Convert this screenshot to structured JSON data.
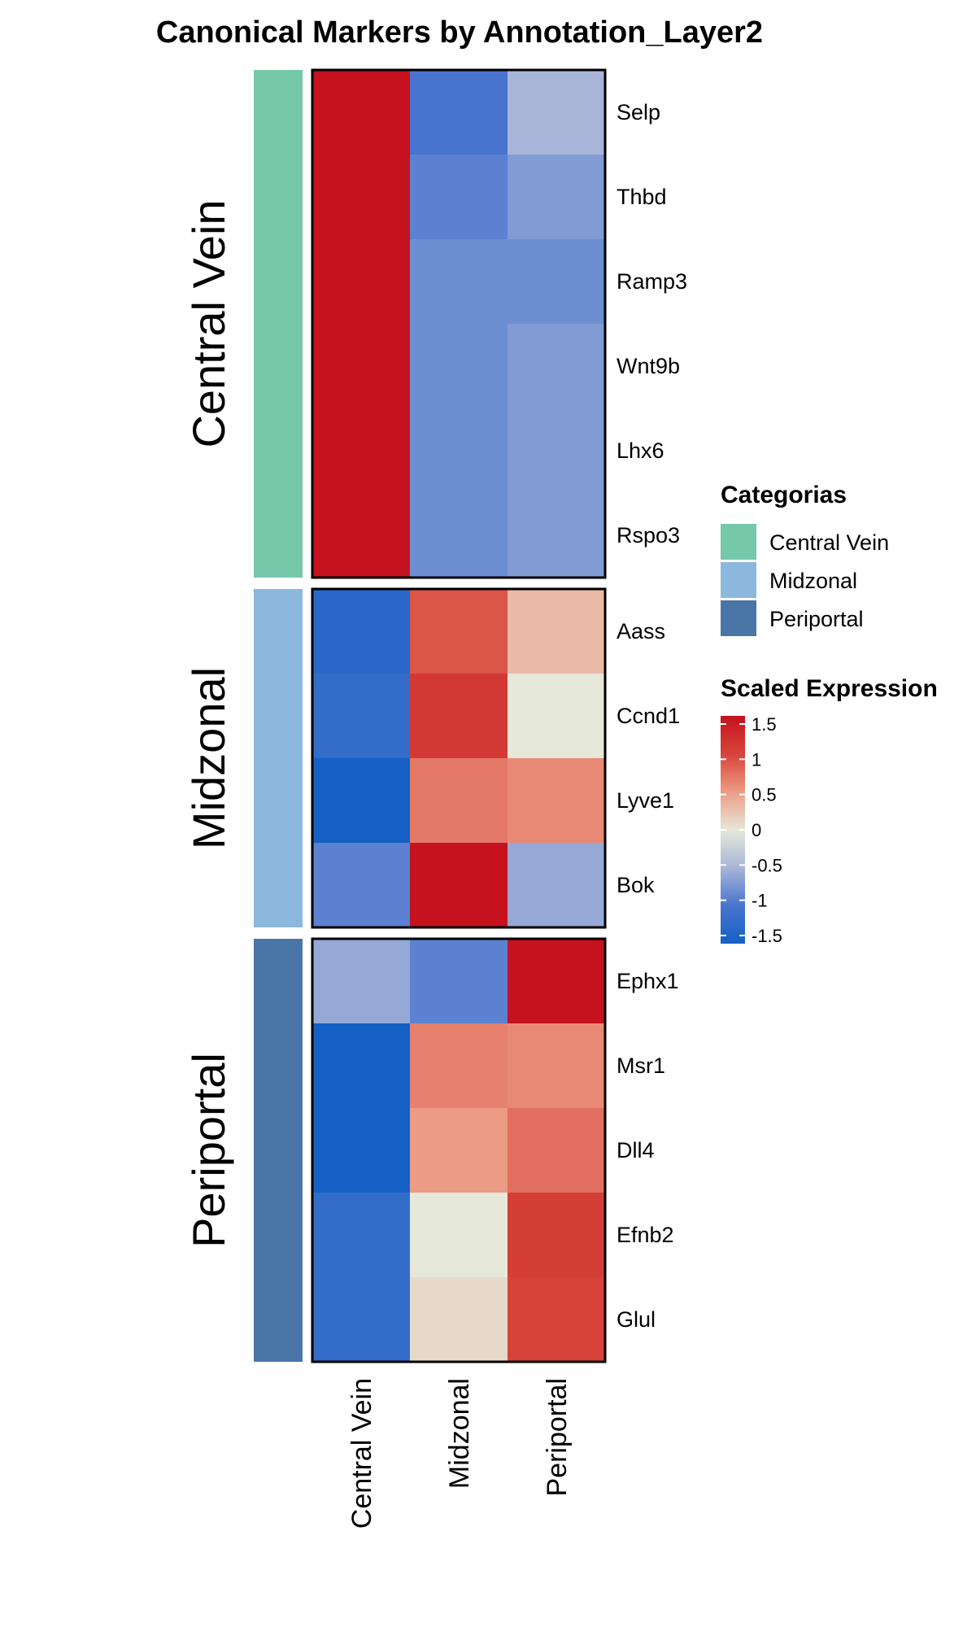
{
  "chart_data": {
    "type": "heatmap",
    "title": "Canonical Markers by Annotation_Layer2",
    "columns": [
      "Central Vein",
      "Midzonal",
      "Periportal"
    ],
    "groups": [
      {
        "name": "Central Vein",
        "color": "#76C8AB",
        "rows": [
          {
            "gene": "Selp",
            "values": [
              1.5,
              -1.0,
              -0.5
            ]
          },
          {
            "gene": "Thbd",
            "values": [
              1.5,
              -0.9,
              -0.7
            ]
          },
          {
            "gene": "Ramp3",
            "values": [
              1.5,
              -0.8,
              -0.8
            ]
          },
          {
            "gene": "Wnt9b",
            "values": [
              1.5,
              -0.8,
              -0.7
            ]
          },
          {
            "gene": "Lhx6",
            "values": [
              1.5,
              -0.8,
              -0.7
            ]
          },
          {
            "gene": "Rspo3",
            "values": [
              1.5,
              -0.8,
              -0.7
            ]
          }
        ]
      },
      {
        "name": "Midzonal",
        "color": "#8BB8DC",
        "rows": [
          {
            "gene": "Aass",
            "values": [
              -1.3,
              0.9,
              0.3
            ]
          },
          {
            "gene": "Ccnd1",
            "values": [
              -1.2,
              1.1,
              0.0
            ]
          },
          {
            "gene": "Lyve1",
            "values": [
              -1.5,
              0.7,
              0.6
            ]
          },
          {
            "gene": "Bok",
            "values": [
              -0.9,
              1.5,
              -0.6
            ]
          }
        ]
      },
      {
        "name": "Periportal",
        "color": "#4A76A7",
        "rows": [
          {
            "gene": "Ephx1",
            "values": [
              -0.6,
              -0.9,
              1.5
            ]
          },
          {
            "gene": "Msr1",
            "values": [
              -1.5,
              0.65,
              0.6
            ]
          },
          {
            "gene": "Dll4",
            "values": [
              -1.5,
              0.5,
              0.75
            ]
          },
          {
            "gene": "Efnb2",
            "values": [
              -1.2,
              0.0,
              1.05
            ]
          },
          {
            "gene": "Glul",
            "values": [
              -1.2,
              0.1,
              1.0
            ]
          }
        ]
      }
    ],
    "color_scale": {
      "min": -1.5,
      "max": 1.5,
      "stops": [
        {
          "value": -1.5,
          "color": "#1560C5"
        },
        {
          "value": -1.0,
          "color": "#4874CE"
        },
        {
          "value": -0.5,
          "color": "#A8B5D8"
        },
        {
          "value": 0.0,
          "color": "#E6E8DA"
        },
        {
          "value": 0.5,
          "color": "#EC9B85"
        },
        {
          "value": 1.0,
          "color": "#D7433A"
        },
        {
          "value": 1.5,
          "color": "#C5121E"
        }
      ]
    },
    "legends": {
      "categories": {
        "title": "Categorias",
        "items": [
          {
            "label": "Central Vein",
            "color": "#76C8AB"
          },
          {
            "label": "Midzonal",
            "color": "#8BB8DC"
          },
          {
            "label": "Periportal",
            "color": "#4A76A7"
          }
        ]
      },
      "scale": {
        "title": "Scaled Expression",
        "ticks": [
          {
            "value": 1.5,
            "label": "1.5"
          },
          {
            "value": 1.0,
            "label": "1"
          },
          {
            "value": 0.5,
            "label": "0.5"
          },
          {
            "value": 0.0,
            "label": "0"
          },
          {
            "value": -0.5,
            "label": "-0.5"
          },
          {
            "value": -1.0,
            "label": "-1"
          },
          {
            "value": -1.5,
            "label": "-1.5"
          }
        ]
      }
    }
  }
}
